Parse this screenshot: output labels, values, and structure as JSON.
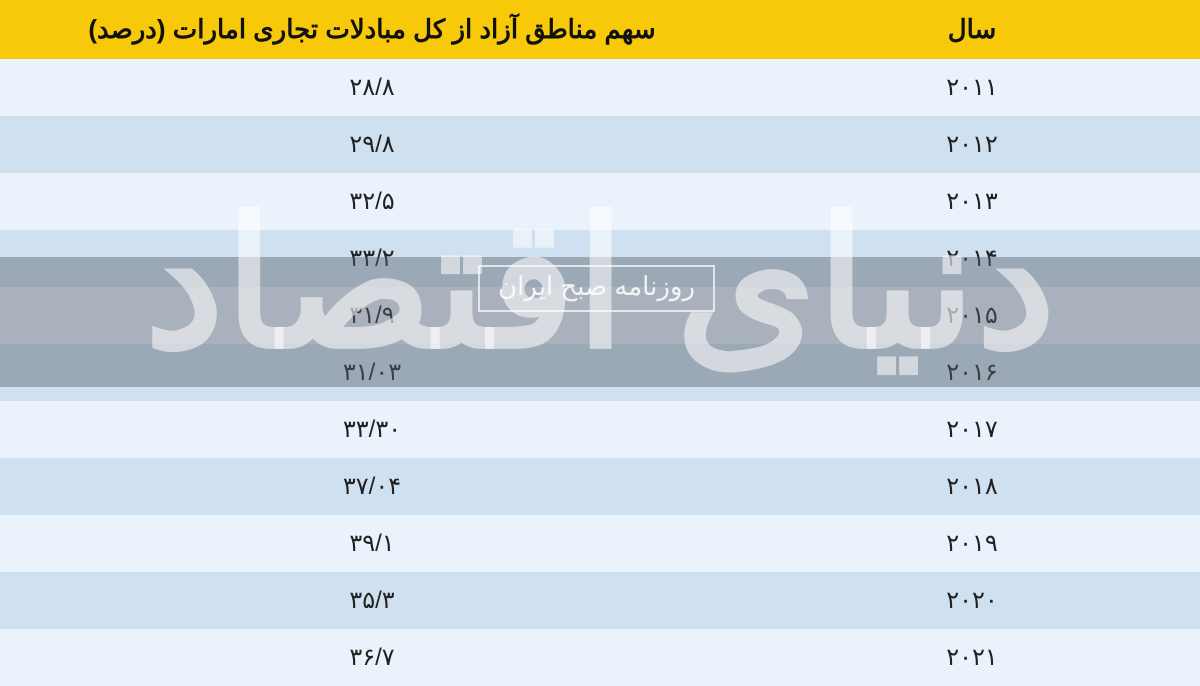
{
  "table": {
    "header_bg": "#f7c908",
    "header_color": "#111111",
    "header_fontsize": 26,
    "row_odd_bg": "#eaf2fb",
    "row_even_bg": "#cfe0f1",
    "cell_color": "#222222",
    "cell_fontsize": 24,
    "columns": [
      {
        "key": "year",
        "label": "سال",
        "width_pct": 38
      },
      {
        "key": "share",
        "label": "سهم مناطق آزاد از کل مبادلات تجاری امارات (درصد)",
        "width_pct": 62
      }
    ],
    "rows": [
      {
        "year": "۲۰۱۱",
        "share": "۲۸/۸"
      },
      {
        "year": "۲۰۱۲",
        "share": "۲۹/۸"
      },
      {
        "year": "۲۰۱۳",
        "share": "۳۲/۵"
      },
      {
        "year": "۲۰۱۴",
        "share": "۳۳/۲"
      },
      {
        "year": "۲۰۱۵",
        "share": "۳۱/۹"
      },
      {
        "year": "۲۰۱۶",
        "share": "۳۱/۰۳"
      },
      {
        "year": "۲۰۱۷",
        "share": "۳۳/۳۰"
      },
      {
        "year": "۲۰۱۸",
        "share": "۳۷/۰۴"
      },
      {
        "year": "۲۰۱۹",
        "share": "۳۹/۱"
      },
      {
        "year": "۲۰۲۰",
        "share": "۳۵/۳"
      },
      {
        "year": "۲۰۲۱",
        "share": "۳۶/۷"
      }
    ]
  },
  "watermark": {
    "main": "دنیای اقتصاد",
    "sub": "روزنامه صبح ایران"
  }
}
